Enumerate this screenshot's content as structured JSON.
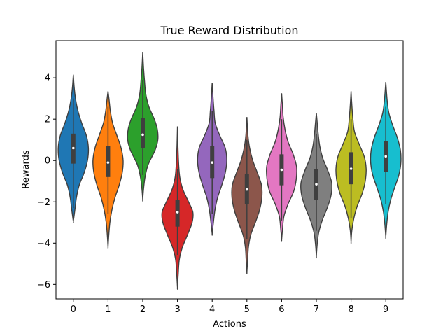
{
  "chart_data": {
    "type": "violin",
    "title": "True Reward Distribution",
    "xlabel": "Actions",
    "ylabel": "Rewards",
    "ylim": [
      -6.7,
      5.8
    ],
    "yticks": [
      -6,
      -4,
      -2,
      0,
      2,
      4
    ],
    "categories": [
      "0",
      "1",
      "2",
      "3",
      "4",
      "5",
      "6",
      "7",
      "8",
      "9"
    ],
    "colors": [
      "#1f77b4",
      "#ff7f0e",
      "#2ca02c",
      "#d62728",
      "#9467bd",
      "#8c564b",
      "#e377c2",
      "#7f7f7f",
      "#bcbd22",
      "#17becf"
    ],
    "grid": false,
    "legend": "none",
    "series": [
      {
        "category": "0",
        "min": -2.95,
        "max": 4.15,
        "median": 0.6,
        "q1": -0.15,
        "q3": 1.3,
        "whisker_low": -2.3,
        "whisker_high": 3.0,
        "profile": [
          [
            -2.95,
            0.0
          ],
          [
            -2.4,
            0.1
          ],
          [
            -1.8,
            0.2
          ],
          [
            -1.2,
            0.38
          ],
          [
            -0.6,
            0.7
          ],
          [
            0.0,
            0.92
          ],
          [
            0.6,
            0.98
          ],
          [
            1.2,
            0.85
          ],
          [
            1.8,
            0.55
          ],
          [
            2.4,
            0.3
          ],
          [
            3.0,
            0.14
          ],
          [
            3.6,
            0.05
          ],
          [
            4.15,
            0.0
          ]
        ]
      },
      {
        "category": "1",
        "min": -4.2,
        "max": 3.35,
        "median": -0.1,
        "q1": -0.8,
        "q3": 0.7,
        "whisker_low": -2.6,
        "whisker_high": 2.6,
        "profile": [
          [
            -4.2,
            0.0
          ],
          [
            -3.6,
            0.05
          ],
          [
            -3.0,
            0.12
          ],
          [
            -2.4,
            0.25
          ],
          [
            -1.8,
            0.45
          ],
          [
            -1.2,
            0.72
          ],
          [
            -0.6,
            0.92
          ],
          [
            0.0,
            0.98
          ],
          [
            0.6,
            0.85
          ],
          [
            1.2,
            0.58
          ],
          [
            1.8,
            0.3
          ],
          [
            2.4,
            0.15
          ],
          [
            3.0,
            0.06
          ],
          [
            3.35,
            0.0
          ]
        ]
      },
      {
        "category": "2",
        "min": -1.9,
        "max": 5.25,
        "median": 1.25,
        "q1": 0.6,
        "q3": 2.05,
        "whisker_low": -0.7,
        "whisker_high": 3.9,
        "profile": [
          [
            -1.9,
            0.0
          ],
          [
            -1.4,
            0.05
          ],
          [
            -0.8,
            0.15
          ],
          [
            -0.2,
            0.35
          ],
          [
            0.5,
            0.8
          ],
          [
            1.0,
            0.98
          ],
          [
            1.5,
            0.95
          ],
          [
            2.0,
            0.75
          ],
          [
            2.6,
            0.4
          ],
          [
            3.2,
            0.2
          ],
          [
            3.8,
            0.12
          ],
          [
            4.5,
            0.05
          ],
          [
            5.25,
            0.0
          ]
        ]
      },
      {
        "category": "3",
        "min": -6.15,
        "max": 1.65,
        "median": -2.5,
        "q1": -3.2,
        "q3": -1.9,
        "whisker_low": -4.6,
        "whisker_high": -0.4,
        "profile": [
          [
            -6.15,
            0.0
          ],
          [
            -5.5,
            0.05
          ],
          [
            -4.8,
            0.12
          ],
          [
            -4.2,
            0.32
          ],
          [
            -3.6,
            0.65
          ],
          [
            -3.0,
            0.95
          ],
          [
            -2.5,
            1.0
          ],
          [
            -2.0,
            0.72
          ],
          [
            -1.4,
            0.35
          ],
          [
            -0.8,
            0.15
          ],
          [
            -0.2,
            0.08
          ],
          [
            0.5,
            0.04
          ],
          [
            1.0,
            0.02
          ],
          [
            1.65,
            0.0
          ]
        ]
      },
      {
        "category": "4",
        "min": -3.55,
        "max": 3.75,
        "median": -0.1,
        "q1": -0.85,
        "q3": 0.7,
        "whisker_low": -2.6,
        "whisker_high": 2.4,
        "profile": [
          [
            -3.55,
            0.0
          ],
          [
            -3.0,
            0.08
          ],
          [
            -2.4,
            0.18
          ],
          [
            -1.8,
            0.35
          ],
          [
            -1.2,
            0.62
          ],
          [
            -0.6,
            0.85
          ],
          [
            0.0,
            0.95
          ],
          [
            0.6,
            0.85
          ],
          [
            1.2,
            0.5
          ],
          [
            1.8,
            0.2
          ],
          [
            2.4,
            0.12
          ],
          [
            3.0,
            0.06
          ],
          [
            3.75,
            0.0
          ]
        ]
      },
      {
        "category": "5",
        "min": -5.4,
        "max": 2.1,
        "median": -1.4,
        "q1": -2.1,
        "q3": -0.65,
        "whisker_low": -3.8,
        "whisker_high": 1.0,
        "profile": [
          [
            -5.4,
            0.0
          ],
          [
            -4.8,
            0.05
          ],
          [
            -4.2,
            0.1
          ],
          [
            -3.6,
            0.25
          ],
          [
            -3.0,
            0.55
          ],
          [
            -2.4,
            0.82
          ],
          [
            -1.8,
            0.97
          ],
          [
            -1.2,
            0.95
          ],
          [
            -0.6,
            0.68
          ],
          [
            0.0,
            0.38
          ],
          [
            0.6,
            0.18
          ],
          [
            1.2,
            0.07
          ],
          [
            2.1,
            0.0
          ]
        ]
      },
      {
        "category": "6",
        "min": -3.85,
        "max": 3.25,
        "median": -0.45,
        "q1": -1.2,
        "q3": 0.3,
        "whisker_low": -2.9,
        "whisker_high": 2.0,
        "profile": [
          [
            -3.85,
            0.0
          ],
          [
            -3.3,
            0.06
          ],
          [
            -2.7,
            0.15
          ],
          [
            -2.1,
            0.42
          ],
          [
            -1.5,
            0.78
          ],
          [
            -0.9,
            0.95
          ],
          [
            -0.3,
            0.97
          ],
          [
            0.3,
            0.75
          ],
          [
            0.9,
            0.42
          ],
          [
            1.5,
            0.22
          ],
          [
            2.1,
            0.1
          ],
          [
            2.7,
            0.05
          ],
          [
            3.25,
            0.0
          ]
        ]
      },
      {
        "category": "7",
        "min": -4.65,
        "max": 2.3,
        "median": -1.15,
        "q1": -1.9,
        "q3": -0.4,
        "whisker_low": -3.4,
        "whisker_high": 1.3,
        "profile": [
          [
            -4.65,
            0.0
          ],
          [
            -4.1,
            0.05
          ],
          [
            -3.5,
            0.15
          ],
          [
            -2.9,
            0.38
          ],
          [
            -2.3,
            0.7
          ],
          [
            -1.7,
            0.95
          ],
          [
            -1.1,
            1.0
          ],
          [
            -0.5,
            0.75
          ],
          [
            0.1,
            0.42
          ],
          [
            0.7,
            0.22
          ],
          [
            1.3,
            0.12
          ],
          [
            1.8,
            0.06
          ],
          [
            2.3,
            0.0
          ]
        ]
      },
      {
        "category": "8",
        "min": -3.95,
        "max": 3.35,
        "median": -0.4,
        "q1": -1.15,
        "q3": 0.4,
        "whisker_low": -2.8,
        "whisker_high": 2.0,
        "profile": [
          [
            -3.95,
            0.0
          ],
          [
            -3.4,
            0.05
          ],
          [
            -2.8,
            0.18
          ],
          [
            -2.2,
            0.4
          ],
          [
            -1.6,
            0.72
          ],
          [
            -1.0,
            0.92
          ],
          [
            -0.4,
            0.98
          ],
          [
            0.2,
            0.85
          ],
          [
            0.8,
            0.52
          ],
          [
            1.4,
            0.22
          ],
          [
            2.0,
            0.12
          ],
          [
            2.7,
            0.05
          ],
          [
            3.35,
            0.0
          ]
        ]
      },
      {
        "category": "9",
        "min": -3.7,
        "max": 3.8,
        "median": 0.2,
        "q1": -0.55,
        "q3": 0.95,
        "whisker_low": -2.1,
        "whisker_high": 2.6,
        "profile": [
          [
            -3.7,
            0.0
          ],
          [
            -3.1,
            0.06
          ],
          [
            -2.5,
            0.15
          ],
          [
            -1.9,
            0.32
          ],
          [
            -1.3,
            0.58
          ],
          [
            -0.7,
            0.85
          ],
          [
            -0.1,
            0.98
          ],
          [
            0.5,
            0.95
          ],
          [
            1.1,
            0.75
          ],
          [
            1.7,
            0.45
          ],
          [
            2.3,
            0.2
          ],
          [
            2.9,
            0.09
          ],
          [
            3.8,
            0.0
          ]
        ]
      }
    ]
  }
}
